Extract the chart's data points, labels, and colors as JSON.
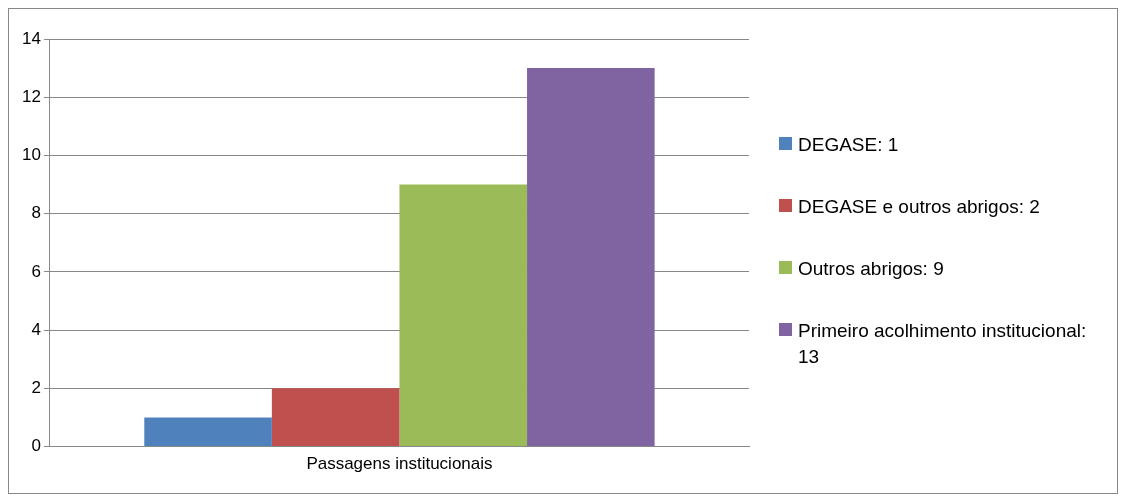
{
  "chart_data": {
    "type": "bar",
    "categories": [
      "Passagens institucionais"
    ],
    "series": [
      {
        "name": "DEGASE: 1",
        "color": "#4f81bd",
        "values": [
          1
        ]
      },
      {
        "name": "DEGASE e outros abrigos: 2",
        "color": "#c0504d",
        "values": [
          2
        ]
      },
      {
        "name": "Outros abrigos: 9",
        "color": "#9bbb59",
        "values": [
          9
        ]
      },
      {
        "name": "Primeiro acolhimento institucional: 13",
        "color": "#8064a2",
        "values": [
          13
        ]
      }
    ],
    "ylim": [
      0,
      14
    ],
    "yticks": [
      0,
      2,
      4,
      6,
      8,
      10,
      12,
      14
    ],
    "grid": "y",
    "legend": "right"
  }
}
